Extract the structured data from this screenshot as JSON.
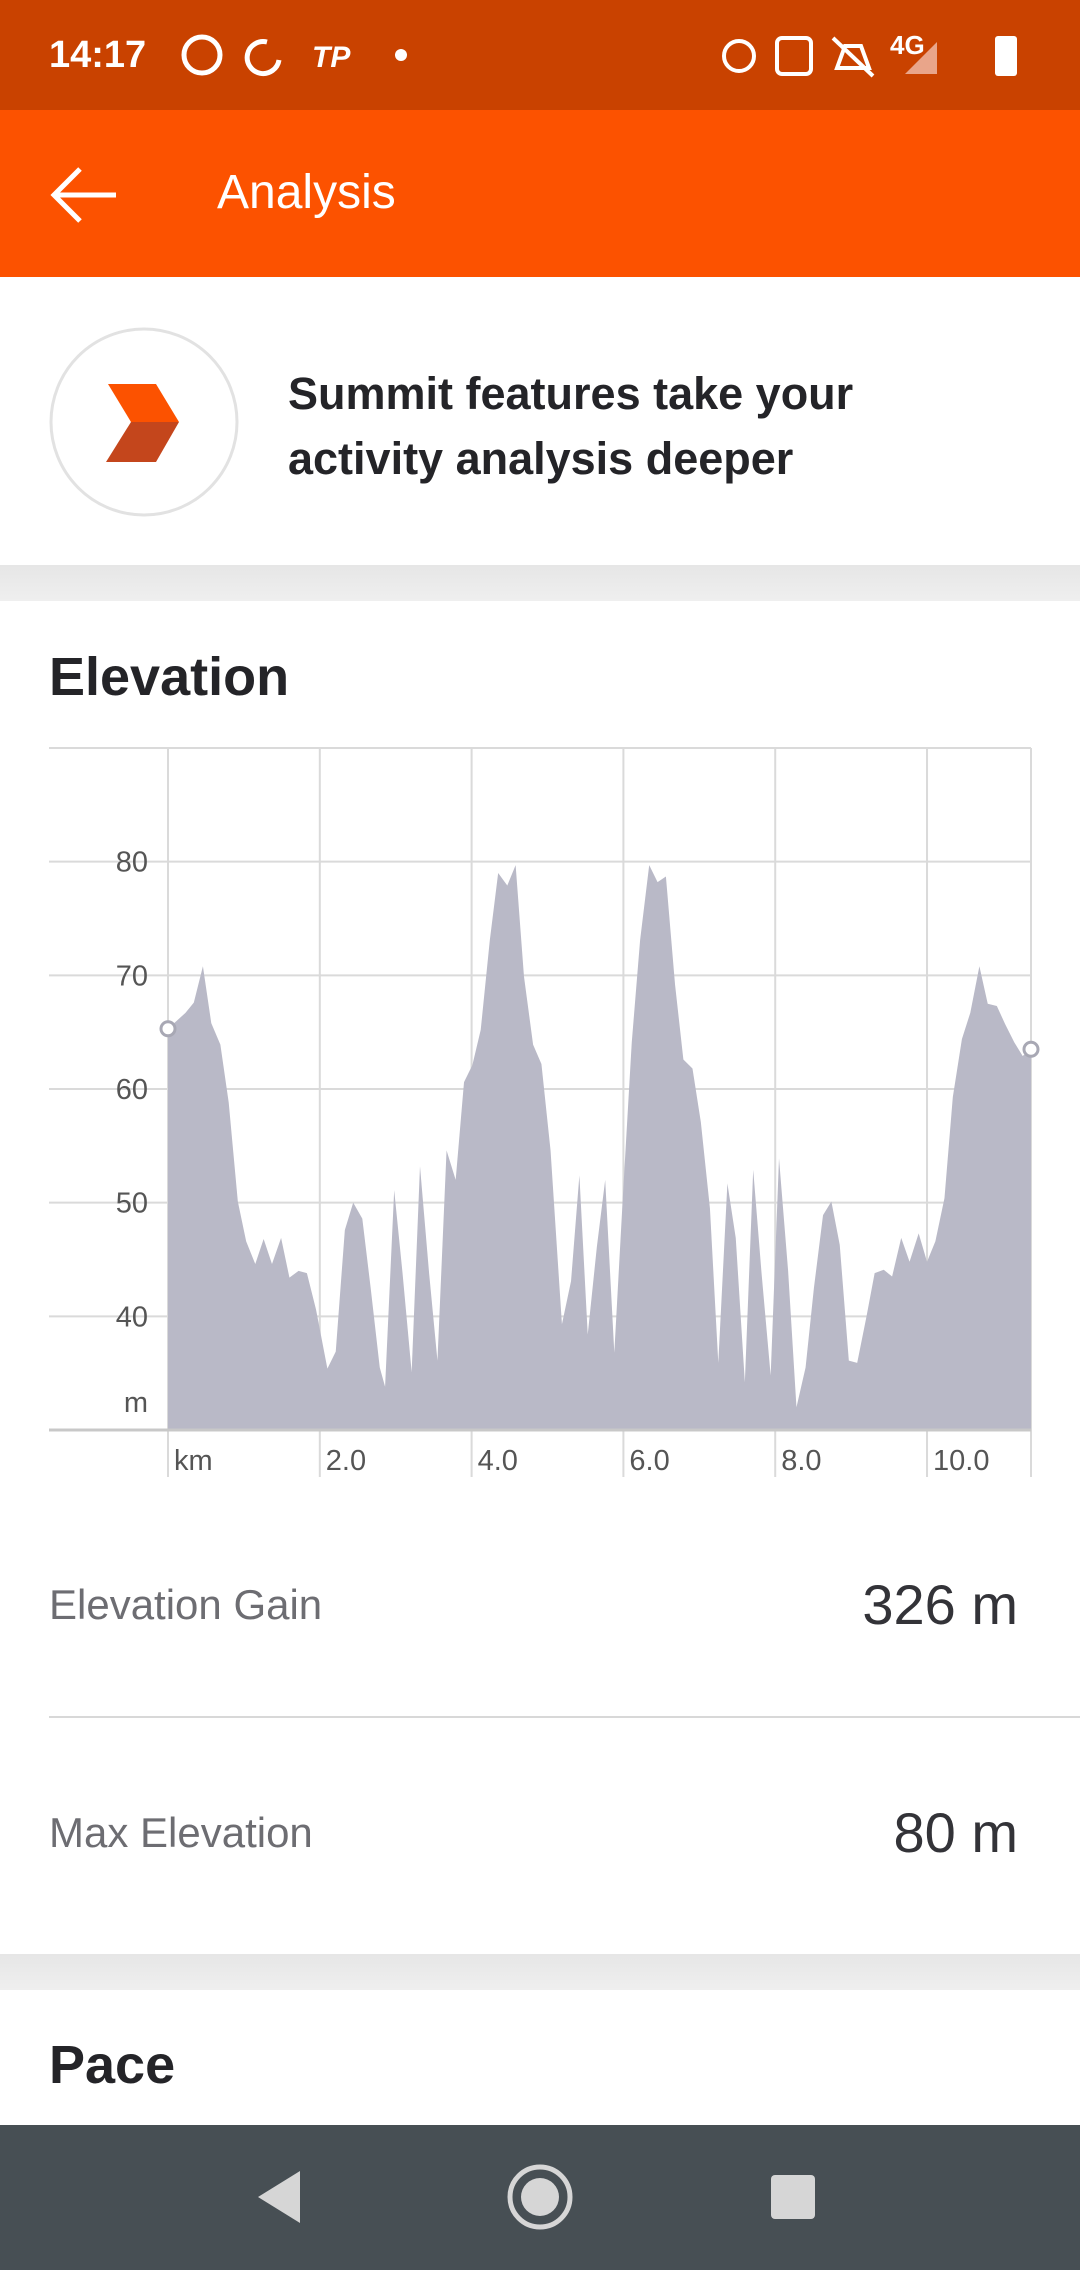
{
  "status_bar": {
    "time": "14:17",
    "network": "4G"
  },
  "app_bar": {
    "title": "Analysis"
  },
  "promo": {
    "text": "Summit features take your activity analysis deeper"
  },
  "elevation": {
    "title": "Elevation",
    "chart_data": {
      "type": "area",
      "color": "#b9b9c7",
      "x": [
        0,
        0.23,
        0.34,
        0.46,
        0.57,
        0.69,
        0.8,
        0.92,
        1.03,
        1.15,
        1.26,
        1.37,
        1.49,
        1.6,
        1.72,
        1.83,
        1.95,
        2.1,
        2.21,
        2.33,
        2.44,
        2.56,
        2.67,
        2.79,
        2.86,
        2.98,
        3.09,
        3.21,
        3.32,
        3.44,
        3.55,
        3.67,
        3.79,
        3.9,
        4.01,
        4.12,
        4.24,
        4.35,
        4.47,
        4.58,
        4.69,
        4.81,
        4.92,
        5.04,
        5.19,
        5.31,
        5.42,
        5.53,
        5.65,
        5.76,
        5.88,
        6.0,
        6.11,
        6.22,
        6.34,
        6.45,
        6.56,
        6.68,
        6.79,
        6.91,
        7.02,
        7.14,
        7.25,
        7.37,
        7.48,
        7.6,
        7.71,
        7.82,
        7.94,
        8.05,
        8.17,
        8.28,
        8.4,
        8.51,
        8.63,
        8.74,
        8.85,
        8.97,
        9.08,
        9.2,
        9.31,
        9.43,
        9.54,
        9.66,
        9.77,
        9.89,
        10.0,
        10.11,
        10.23,
        10.34,
        10.46,
        10.57,
        10.69,
        10.8,
        10.92,
        11.03,
        11.15,
        11.26,
        11.37
      ],
      "values": [
        65.3,
        66.7,
        67.6,
        70.8,
        65.8,
        63.9,
        58.8,
        50.1,
        46.6,
        44.6,
        46.8,
        44.6,
        46.9,
        43.4,
        44.0,
        43.8,
        40.6,
        35.4,
        36.9,
        47.6,
        50.0,
        48.6,
        42.5,
        35.5,
        33.8,
        51.1,
        43.8,
        35.1,
        53.2,
        43.8,
        36.1,
        54.6,
        52.0,
        60.6,
        62.1,
        65.2,
        73.1,
        79.0,
        77.9,
        79.7,
        69.9,
        63.9,
        62.2,
        54.6,
        39.3,
        43.1,
        52.4,
        38.4,
        46.1,
        52.0,
        36.8,
        51.4,
        64.1,
        73.1,
        79.7,
        78.2,
        78.7,
        69.2,
        62.6,
        61.8,
        57.1,
        49.5,
        35.9,
        51.7,
        46.9,
        34.2,
        52.9,
        43.8,
        34.8,
        53.9,
        44.0,
        32.0,
        35.5,
        42.5,
        48.9,
        50.1,
        46.3,
        36.1,
        35.9,
        39.9,
        43.8,
        44.1,
        43.5,
        46.9,
        44.8,
        47.3,
        44.8,
        46.6,
        50.4,
        59.3,
        64.4,
        66.7,
        70.8,
        67.5,
        67.3,
        65.7,
        64.1,
        62.9,
        63.5
      ],
      "xlim": [
        0,
        11.37
      ],
      "ylim": [
        30,
        90
      ],
      "xticks": [
        {
          "value": 0,
          "label": "km"
        },
        {
          "value": 2,
          "label": "2.0"
        },
        {
          "value": 4,
          "label": "4.0"
        },
        {
          "value": 6,
          "label": "6.0"
        },
        {
          "value": 8,
          "label": "8.0"
        },
        {
          "value": 10,
          "label": "10.0"
        }
      ],
      "yticks": [
        {
          "value": 30,
          "label": "m"
        },
        40,
        50,
        60,
        70,
        80
      ],
      "grid": true
    },
    "stats": [
      {
        "label": "Elevation Gain",
        "value": "326 m"
      },
      {
        "label": "Max Elevation",
        "value": "80 m"
      }
    ]
  },
  "pace": {
    "title": "Pace"
  }
}
